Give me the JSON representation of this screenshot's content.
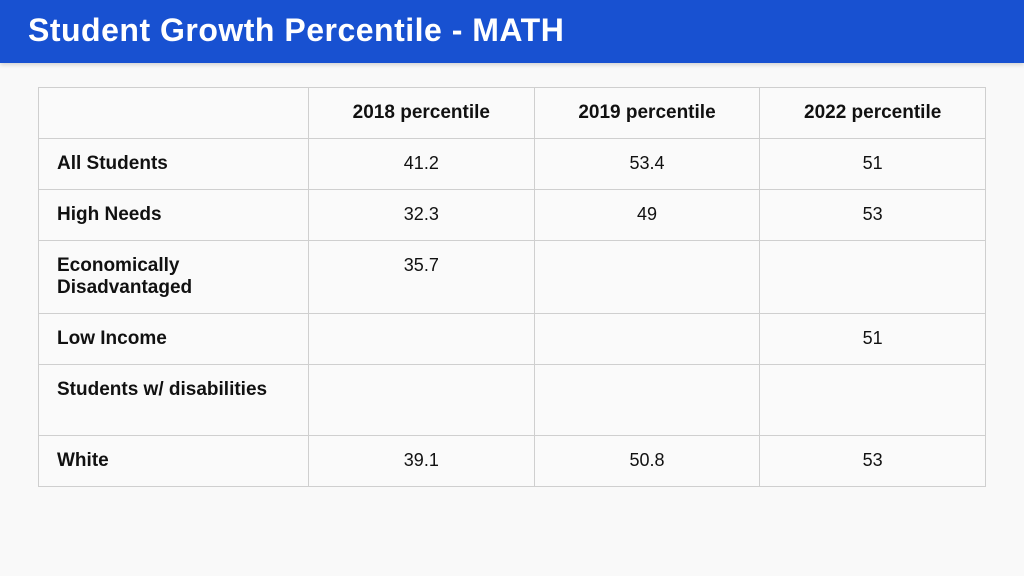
{
  "header": {
    "title": "Student Growth Percentile - MATH",
    "bg_color": "#1851d1",
    "text_color": "#ffffff"
  },
  "table": {
    "type": "table",
    "background_color": "#fafafa",
    "border_color": "#cfcfcf",
    "header_fontsize": 19,
    "cell_fontsize": 18,
    "columns": [
      "",
      "2018 percentile",
      "2019 percentile",
      "2022 percentile"
    ],
    "rows": [
      {
        "label": "All Students",
        "values": [
          "41.2",
          "53.4",
          "51"
        ]
      },
      {
        "label": "High Needs",
        "values": [
          "32.3",
          "49",
          "53"
        ]
      },
      {
        "label": "Economically Disadvantaged",
        "values": [
          "35.7",
          "",
          ""
        ]
      },
      {
        "label": "Low Income",
        "values": [
          "",
          "",
          "51"
        ]
      },
      {
        "label": "Students w/ disabilities",
        "values": [
          "",
          "",
          ""
        ],
        "tall": true
      },
      {
        "label": "White",
        "values": [
          "39.1",
          "50.8",
          "53"
        ]
      }
    ]
  }
}
